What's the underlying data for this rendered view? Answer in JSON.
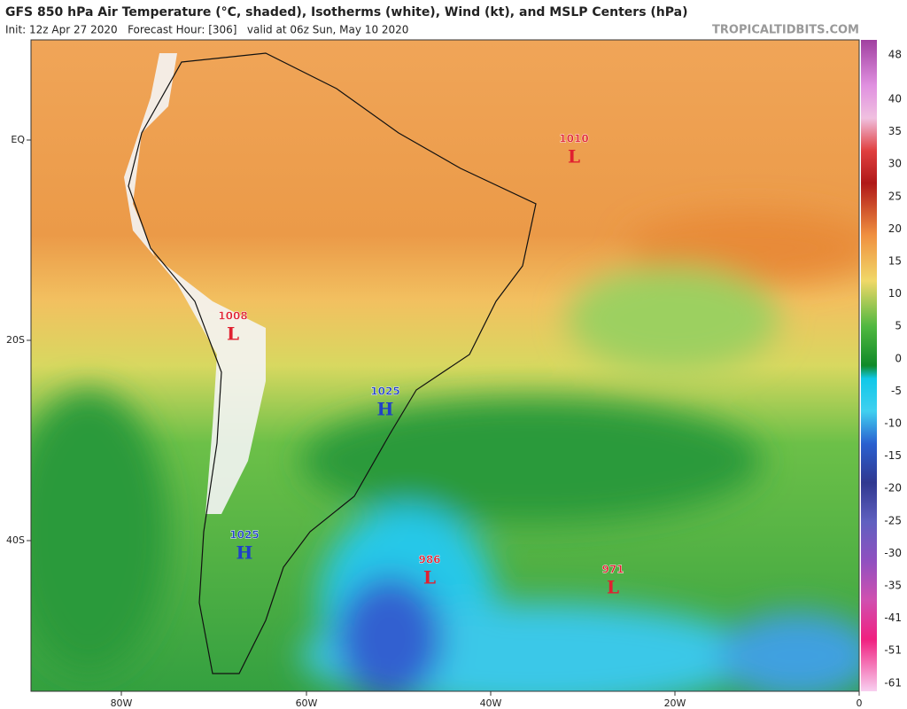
{
  "header": {
    "title": "GFS 850 hPa Air Temperature (°C, shaded), Isotherms (white), Wind (kt), and MSLP Centers (hPa)",
    "subtitle": "Init: 12z Apr 27 2020   Forecast Hour: [306]   valid at 06z Sun, May 10 2020",
    "credit": "TROPICALTIDBITS.COM"
  },
  "latitude_labels": [
    "EQ",
    "20S",
    "40S"
  ],
  "longitude_labels": [
    "80W",
    "60W",
    "40W",
    "20W",
    "0"
  ],
  "colorbar": {
    "labels": [
      "48",
      "40",
      "35",
      "30",
      "25",
      "20",
      "15",
      "10",
      "5",
      "0",
      "-5",
      "-10",
      "-15",
      "-20",
      "-25",
      "-30",
      "-35",
      "-41",
      "-51",
      "-61"
    ]
  },
  "pressure_centers": [
    {
      "value": "1010",
      "letter": "L"
    },
    {
      "value": "1008",
      "letter": "L"
    },
    {
      "value": "1025",
      "letter": "H"
    },
    {
      "value": "1025",
      "letter": "H"
    },
    {
      "value": "986",
      "letter": "L"
    },
    {
      "value": "971",
      "letter": "L"
    }
  ]
}
